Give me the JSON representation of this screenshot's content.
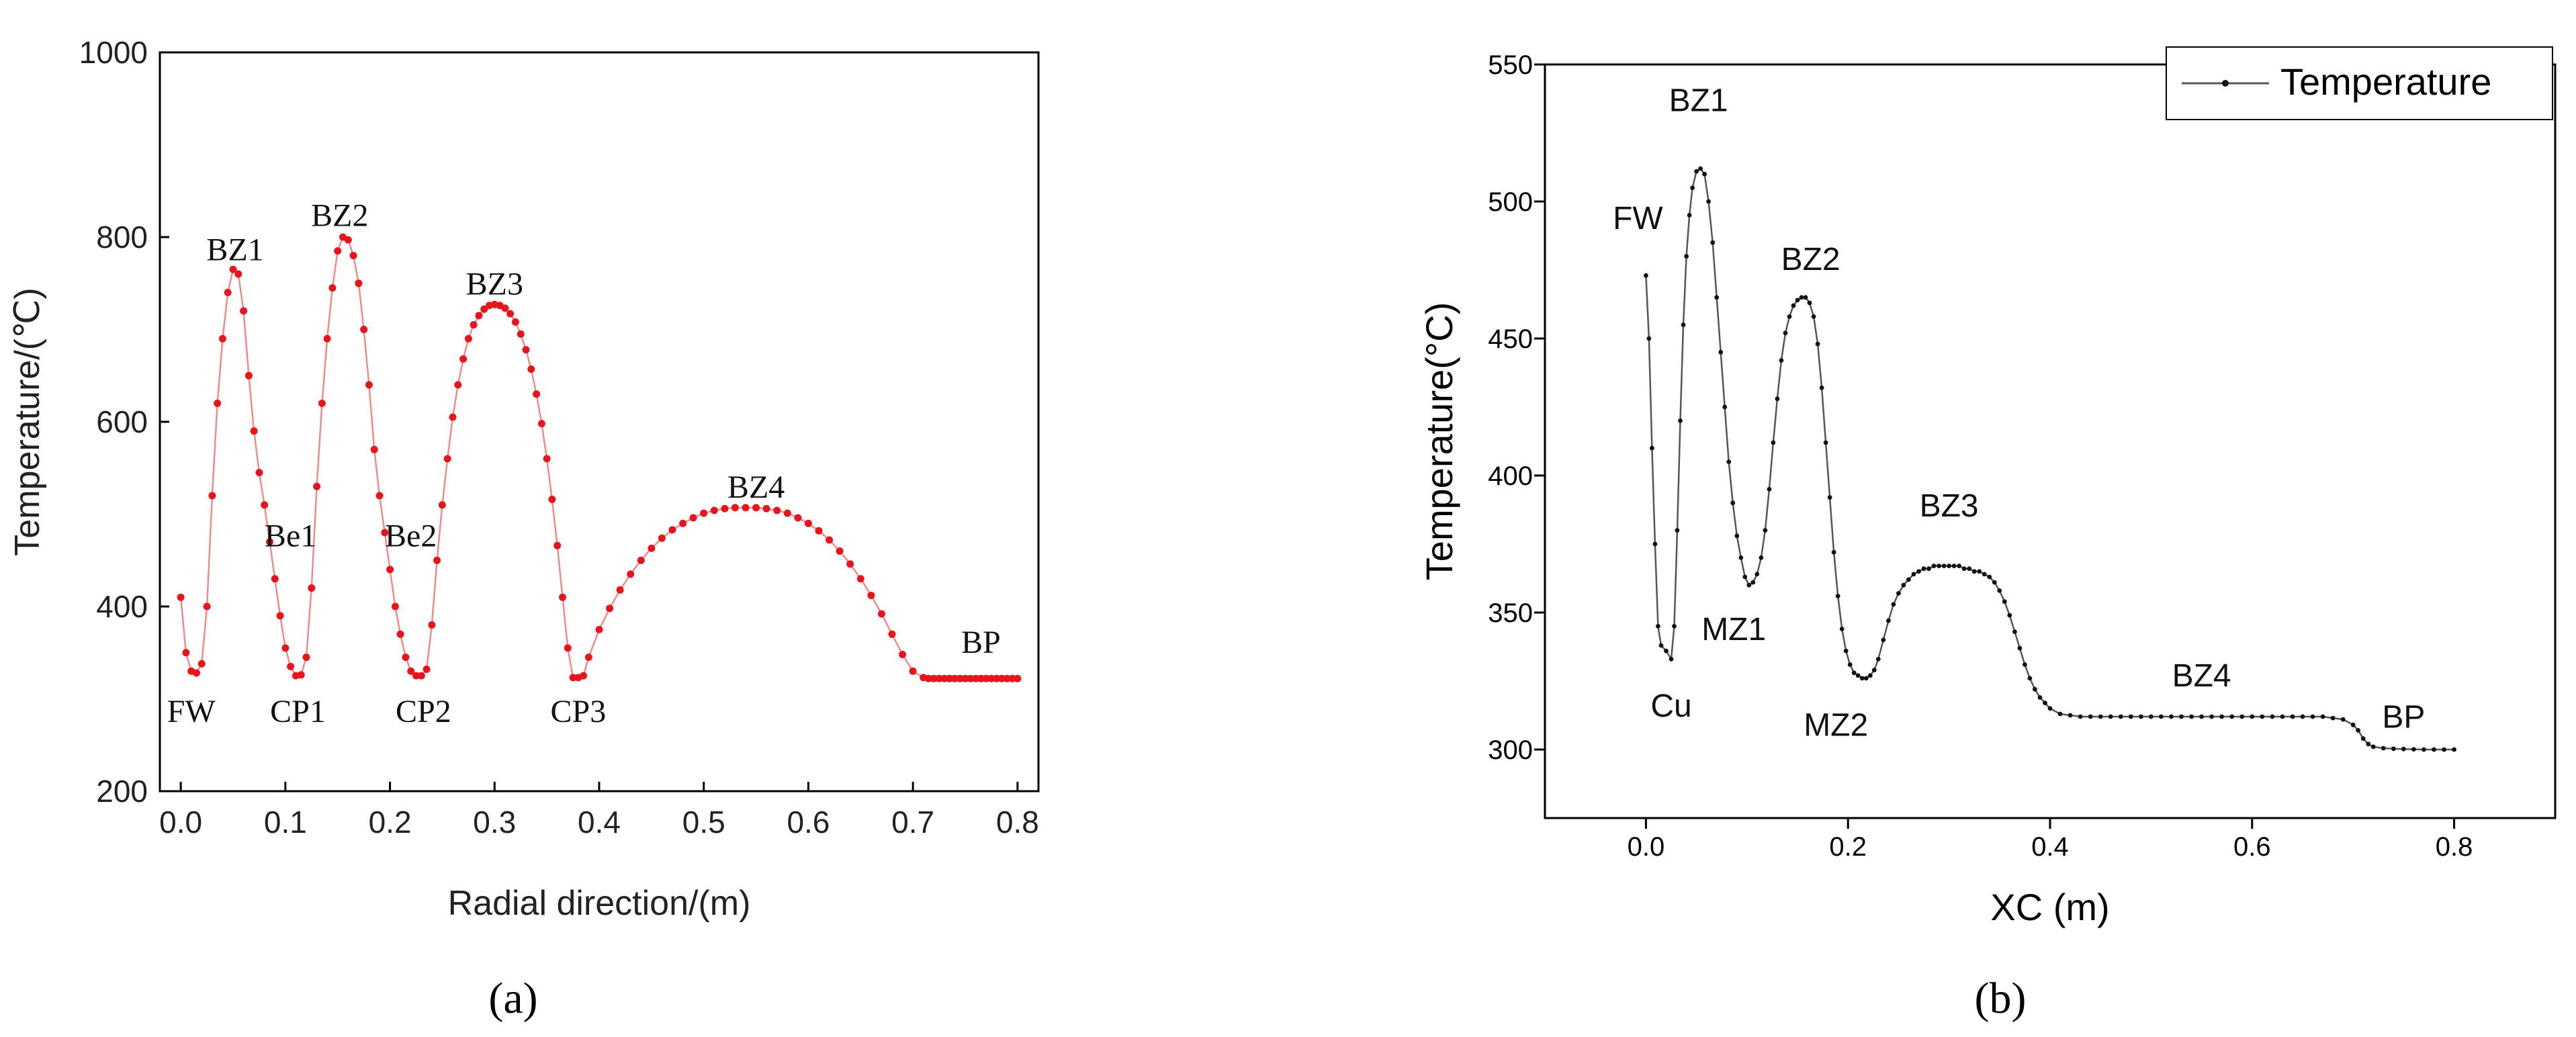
{
  "chart_data": [
    {
      "id": "a",
      "type": "line",
      "caption": "(a)",
      "xlabel": "Radial direction/(m)",
      "ylabel": "Temperature/(℃)",
      "xlim": [
        -0.02,
        0.82
      ],
      "ylim": [
        200,
        1000
      ],
      "xticks": [
        0.0,
        0.1,
        0.2,
        0.3,
        0.4,
        0.5,
        0.6,
        0.7,
        0.8
      ],
      "xtick_labels": [
        "0.0",
        "0.1",
        "0.2",
        "0.3",
        "0.4",
        "0.5",
        "0.6",
        "0.7",
        "0.8"
      ],
      "yticks": [
        200,
        400,
        600,
        800,
        1000
      ],
      "ytick_labels": [
        "200",
        "400",
        "600",
        "800",
        "1000"
      ],
      "series_color": "#e8141c",
      "line_color": "#f08a8a",
      "points": [
        [
          0.0,
          410
        ],
        [
          0.005,
          350
        ],
        [
          0.01,
          330
        ],
        [
          0.015,
          328
        ],
        [
          0.02,
          338
        ],
        [
          0.025,
          400
        ],
        [
          0.03,
          520
        ],
        [
          0.035,
          620
        ],
        [
          0.04,
          690
        ],
        [
          0.045,
          740
        ],
        [
          0.05,
          765
        ],
        [
          0.055,
          760
        ],
        [
          0.06,
          720
        ],
        [
          0.065,
          650
        ],
        [
          0.07,
          590
        ],
        [
          0.075,
          545
        ],
        [
          0.08,
          510
        ],
        [
          0.085,
          470
        ],
        [
          0.09,
          430
        ],
        [
          0.095,
          390
        ],
        [
          0.1,
          355
        ],
        [
          0.105,
          335
        ],
        [
          0.11,
          325
        ],
        [
          0.115,
          326
        ],
        [
          0.12,
          345
        ],
        [
          0.125,
          420
        ],
        [
          0.13,
          530
        ],
        [
          0.135,
          620
        ],
        [
          0.14,
          690
        ],
        [
          0.145,
          745
        ],
        [
          0.15,
          785
        ],
        [
          0.155,
          800
        ],
        [
          0.16,
          797
        ],
        [
          0.165,
          780
        ],
        [
          0.17,
          750
        ],
        [
          0.175,
          700
        ],
        [
          0.18,
          640
        ],
        [
          0.185,
          570
        ],
        [
          0.19,
          520
        ],
        [
          0.195,
          480
        ],
        [
          0.2,
          440
        ],
        [
          0.205,
          400
        ],
        [
          0.21,
          370
        ],
        [
          0.215,
          345
        ],
        [
          0.22,
          330
        ],
        [
          0.225,
          325
        ],
        [
          0.23,
          325
        ],
        [
          0.235,
          332
        ],
        [
          0.24,
          380
        ],
        [
          0.245,
          450
        ],
        [
          0.25,
          510
        ],
        [
          0.255,
          560
        ],
        [
          0.26,
          605
        ],
        [
          0.265,
          640
        ],
        [
          0.27,
          668
        ],
        [
          0.275,
          690
        ],
        [
          0.28,
          705
        ],
        [
          0.285,
          715
        ],
        [
          0.29,
          722
        ],
        [
          0.295,
          726
        ],
        [
          0.3,
          727
        ],
        [
          0.305,
          726
        ],
        [
          0.31,
          723
        ],
        [
          0.315,
          717
        ],
        [
          0.32,
          708
        ],
        [
          0.325,
          695
        ],
        [
          0.33,
          678
        ],
        [
          0.335,
          657
        ],
        [
          0.34,
          630
        ],
        [
          0.345,
          598
        ],
        [
          0.35,
          560
        ],
        [
          0.355,
          516
        ],
        [
          0.36,
          466
        ],
        [
          0.365,
          410
        ],
        [
          0.37,
          355
        ],
        [
          0.375,
          323
        ],
        [
          0.38,
          323
        ],
        [
          0.385,
          325
        ],
        [
          0.39,
          345
        ],
        [
          0.4,
          375
        ],
        [
          0.41,
          398
        ],
        [
          0.42,
          418
        ],
        [
          0.43,
          435
        ],
        [
          0.44,
          450
        ],
        [
          0.45,
          463
        ],
        [
          0.46,
          474
        ],
        [
          0.47,
          483
        ],
        [
          0.48,
          490
        ],
        [
          0.49,
          496
        ],
        [
          0.5,
          501
        ],
        [
          0.51,
          504
        ],
        [
          0.52,
          506
        ],
        [
          0.53,
          507
        ],
        [
          0.54,
          507
        ],
        [
          0.55,
          507
        ],
        [
          0.56,
          506
        ],
        [
          0.57,
          504
        ],
        [
          0.58,
          501
        ],
        [
          0.59,
          496
        ],
        [
          0.6,
          490
        ],
        [
          0.61,
          482
        ],
        [
          0.62,
          472
        ],
        [
          0.63,
          460
        ],
        [
          0.64,
          446
        ],
        [
          0.65,
          430
        ],
        [
          0.66,
          412
        ],
        [
          0.67,
          392
        ],
        [
          0.68,
          370
        ],
        [
          0.69,
          348
        ],
        [
          0.7,
          330
        ],
        [
          0.71,
          323
        ],
        [
          0.715,
          322
        ],
        [
          0.72,
          322
        ],
        [
          0.725,
          322
        ],
        [
          0.73,
          322
        ],
        [
          0.735,
          322
        ],
        [
          0.74,
          322
        ],
        [
          0.745,
          322
        ],
        [
          0.75,
          322
        ],
        [
          0.755,
          322
        ],
        [
          0.76,
          322
        ],
        [
          0.765,
          322
        ],
        [
          0.77,
          322
        ],
        [
          0.775,
          322
        ],
        [
          0.78,
          322
        ],
        [
          0.785,
          322
        ],
        [
          0.79,
          322
        ],
        [
          0.795,
          322
        ],
        [
          0.8,
          322
        ]
      ],
      "annotations": [
        {
          "text": "BZ1",
          "x": 0.052,
          "y": 775
        },
        {
          "text": "BZ2",
          "x": 0.152,
          "y": 812
        },
        {
          "text": "BZ3",
          "x": 0.3,
          "y": 738
        },
        {
          "text": "BZ4",
          "x": 0.55,
          "y": 518
        },
        {
          "text": "Be1",
          "x": 0.105,
          "y": 465
        },
        {
          "text": "Be2",
          "x": 0.22,
          "y": 465
        },
        {
          "text": "FW",
          "x": 0.01,
          "y": 275
        },
        {
          "text": "CP1",
          "x": 0.112,
          "y": 275
        },
        {
          "text": "CP2",
          "x": 0.232,
          "y": 275
        },
        {
          "text": "CP3",
          "x": 0.38,
          "y": 275
        },
        {
          "text": "BP",
          "x": 0.765,
          "y": 350
        }
      ]
    },
    {
      "id": "b",
      "type": "line",
      "caption": "(b)",
      "xlabel": "XC (m)",
      "ylabel": "Temperature(°C)",
      "xlim": [
        -0.1,
        0.9
      ],
      "ylim": [
        275,
        550
      ],
      "xticks": [
        0.0,
        0.2,
        0.4,
        0.6,
        0.8
      ],
      "xtick_labels": [
        "0.0",
        "0.2",
        "0.4",
        "0.6",
        "0.8"
      ],
      "yticks": [
        300,
        350,
        400,
        450,
        500,
        550
      ],
      "ytick_labels": [
        "300",
        "350",
        "400",
        "450",
        "500",
        "550"
      ],
      "legend": {
        "label": "Temperature",
        "position": "top-right"
      },
      "series_color": "#111111",
      "line_color": "#555555",
      "points": [
        [
          0.0,
          473
        ],
        [
          0.003,
          450
        ],
        [
          0.006,
          410
        ],
        [
          0.009,
          375
        ],
        [
          0.012,
          345
        ],
        [
          0.015,
          338
        ],
        [
          0.02,
          336
        ],
        [
          0.025,
          333
        ],
        [
          0.028,
          345
        ],
        [
          0.031,
          380
        ],
        [
          0.034,
          420
        ],
        [
          0.037,
          455
        ],
        [
          0.04,
          480
        ],
        [
          0.043,
          495
        ],
        [
          0.046,
          505
        ],
        [
          0.05,
          511
        ],
        [
          0.054,
          512
        ],
        [
          0.058,
          510
        ],
        [
          0.062,
          500
        ],
        [
          0.066,
          485
        ],
        [
          0.07,
          465
        ],
        [
          0.074,
          445
        ],
        [
          0.078,
          425
        ],
        [
          0.082,
          405
        ],
        [
          0.086,
          390
        ],
        [
          0.09,
          378
        ],
        [
          0.094,
          370
        ],
        [
          0.098,
          363
        ],
        [
          0.102,
          360
        ],
        [
          0.106,
          361
        ],
        [
          0.11,
          364
        ],
        [
          0.114,
          370
        ],
        [
          0.118,
          380
        ],
        [
          0.122,
          395
        ],
        [
          0.126,
          412
        ],
        [
          0.13,
          428
        ],
        [
          0.134,
          442
        ],
        [
          0.138,
          452
        ],
        [
          0.142,
          458
        ],
        [
          0.146,
          462
        ],
        [
          0.15,
          464
        ],
        [
          0.154,
          465
        ],
        [
          0.158,
          465
        ],
        [
          0.162,
          463
        ],
        [
          0.166,
          458
        ],
        [
          0.17,
          448
        ],
        [
          0.174,
          432
        ],
        [
          0.178,
          412
        ],
        [
          0.182,
          392
        ],
        [
          0.186,
          372
        ],
        [
          0.19,
          356
        ],
        [
          0.194,
          344
        ],
        [
          0.198,
          336
        ],
        [
          0.202,
          331
        ],
        [
          0.206,
          328
        ],
        [
          0.21,
          327
        ],
        [
          0.214,
          326
        ],
        [
          0.218,
          326
        ],
        [
          0.222,
          327
        ],
        [
          0.226,
          329
        ],
        [
          0.23,
          333
        ],
        [
          0.235,
          340
        ],
        [
          0.24,
          347
        ],
        [
          0.245,
          353
        ],
        [
          0.25,
          357
        ],
        [
          0.255,
          360
        ],
        [
          0.26,
          362
        ],
        [
          0.265,
          364
        ],
        [
          0.27,
          365
        ],
        [
          0.275,
          366
        ],
        [
          0.28,
          366
        ],
        [
          0.285,
          367
        ],
        [
          0.29,
          367
        ],
        [
          0.295,
          367
        ],
        [
          0.3,
          367
        ],
        [
          0.305,
          367
        ],
        [
          0.31,
          367
        ],
        [
          0.315,
          366
        ],
        [
          0.32,
          366
        ],
        [
          0.325,
          365
        ],
        [
          0.33,
          365
        ],
        [
          0.335,
          364
        ],
        [
          0.34,
          363
        ],
        [
          0.345,
          361
        ],
        [
          0.35,
          358
        ],
        [
          0.355,
          354
        ],
        [
          0.36,
          349
        ],
        [
          0.365,
          343
        ],
        [
          0.37,
          337
        ],
        [
          0.375,
          331
        ],
        [
          0.38,
          326
        ],
        [
          0.385,
          322
        ],
        [
          0.39,
          319
        ],
        [
          0.395,
          317
        ],
        [
          0.4,
          315
        ],
        [
          0.41,
          313
        ],
        [
          0.42,
          312.5
        ],
        [
          0.43,
          312
        ],
        [
          0.44,
          312
        ],
        [
          0.45,
          312
        ],
        [
          0.46,
          312
        ],
        [
          0.47,
          312
        ],
        [
          0.48,
          312
        ],
        [
          0.49,
          312
        ],
        [
          0.5,
          312
        ],
        [
          0.51,
          312
        ],
        [
          0.52,
          312
        ],
        [
          0.53,
          312
        ],
        [
          0.54,
          312
        ],
        [
          0.55,
          312
        ],
        [
          0.56,
          312
        ],
        [
          0.57,
          312
        ],
        [
          0.58,
          312
        ],
        [
          0.59,
          312
        ],
        [
          0.6,
          312
        ],
        [
          0.61,
          312
        ],
        [
          0.62,
          312
        ],
        [
          0.63,
          312
        ],
        [
          0.64,
          312
        ],
        [
          0.65,
          312
        ],
        [
          0.66,
          312
        ],
        [
          0.67,
          312
        ],
        [
          0.68,
          311.5
        ],
        [
          0.69,
          311
        ],
        [
          0.7,
          309
        ],
        [
          0.705,
          307
        ],
        [
          0.71,
          304
        ],
        [
          0.715,
          302
        ],
        [
          0.72,
          301
        ],
        [
          0.73,
          300.5
        ],
        [
          0.74,
          300.3
        ],
        [
          0.75,
          300.2
        ],
        [
          0.76,
          300.1
        ],
        [
          0.77,
          300
        ],
        [
          0.78,
          300
        ],
        [
          0.79,
          300
        ],
        [
          0.8,
          300
        ]
      ],
      "annotations": [
        {
          "text": "FW",
          "x": -0.008,
          "y": 490
        },
        {
          "text": "BZ1",
          "x": 0.052,
          "y": 533
        },
        {
          "text": "BZ2",
          "x": 0.163,
          "y": 475
        },
        {
          "text": "BZ3",
          "x": 0.3,
          "y": 385
        },
        {
          "text": "BZ4",
          "x": 0.55,
          "y": 323
        },
        {
          "text": "BP",
          "x": 0.75,
          "y": 308
        },
        {
          "text": "Cu",
          "x": 0.025,
          "y": 312
        },
        {
          "text": "MZ1",
          "x": 0.087,
          "y": 340
        },
        {
          "text": "MZ2",
          "x": 0.188,
          "y": 305
        }
      ]
    }
  ]
}
